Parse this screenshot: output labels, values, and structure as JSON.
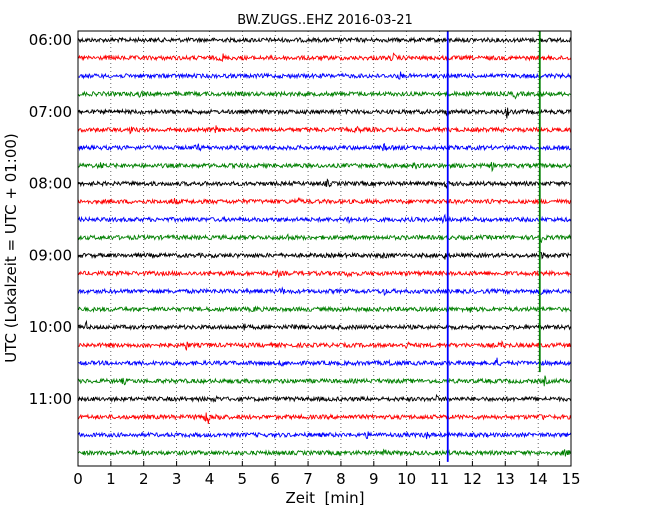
{
  "chart_data": {
    "type": "line",
    "title": "BW.ZUGS..EHZ 2016-03-21",
    "xlabel": "Zeit  [min]",
    "ylabel": "UTC (Lokalzeit = UTC + 01:00)",
    "xlim": [
      0,
      15
    ],
    "x_ticks": [
      "0",
      "1",
      "2",
      "3",
      "4",
      "5",
      "6",
      "7",
      "8",
      "9",
      "10",
      "11",
      "12",
      "13",
      "14",
      "15"
    ],
    "y_ticks": [
      "06:00",
      "07:00",
      "08:00",
      "09:00",
      "10:00",
      "11:00"
    ],
    "grid": true,
    "trace_colors": [
      "#000000",
      "#ff0000",
      "#0000ff",
      "#008000"
    ],
    "traces": [
      {
        "start": "06:00",
        "events": [
          {
            "t": 11.2,
            "a": 1.3
          }
        ]
      },
      {
        "start": "06:15",
        "events": [
          {
            "t": 4.4,
            "a": 1.8
          },
          {
            "t": 9.6,
            "a": 1.6
          }
        ]
      },
      {
        "start": "06:30",
        "events": [
          {
            "t": 9.8,
            "a": 1.5
          }
        ]
      },
      {
        "start": "06:45",
        "events": [
          {
            "t": 1.9,
            "a": 1.5
          },
          {
            "t": 13.3,
            "a": 1.6
          }
        ]
      },
      {
        "start": "07:00",
        "events": [
          {
            "t": 13.05,
            "a": 2.2
          },
          {
            "t": 11.2,
            "a": 1.2
          }
        ]
      },
      {
        "start": "07:15",
        "events": [
          {
            "t": 1.6,
            "a": 1.3
          },
          {
            "t": 4.2,
            "a": 1.2
          },
          {
            "t": 8.5,
            "a": 1.2
          }
        ]
      },
      {
        "start": "07:30",
        "events": [
          {
            "t": 3.65,
            "a": 1.8
          },
          {
            "t": 9.3,
            "a": 1.4
          }
        ]
      },
      {
        "start": "07:45",
        "events": [
          {
            "t": 0.7,
            "a": 1.5
          },
          {
            "t": 10.25,
            "a": 1.6
          },
          {
            "t": 12.6,
            "a": 1.4
          }
        ]
      },
      {
        "start": "08:00",
        "events": [
          {
            "t": 7.6,
            "a": 1.5
          },
          {
            "t": 11.2,
            "a": 1.3
          }
        ]
      },
      {
        "start": "08:15",
        "events": [
          {
            "t": 2.9,
            "a": 1.8
          },
          {
            "t": 6.7,
            "a": 1.5
          },
          {
            "t": 12.5,
            "a": 1.5
          }
        ]
      },
      {
        "start": "08:30",
        "events": [
          {
            "t": 8.25,
            "a": 2.0
          },
          {
            "t": 11.15,
            "a": 2.2
          }
        ]
      },
      {
        "start": "08:45",
        "events": [
          {
            "t": 6.35,
            "a": 1.6
          },
          {
            "t": 14.1,
            "a": 2.4
          }
        ]
      },
      {
        "start": "09:00",
        "events": [
          {
            "t": 11.15,
            "a": 1.6
          },
          {
            "t": 14.1,
            "a": 2.0
          },
          {
            "t": 9.3,
            "a": 1.4
          }
        ]
      },
      {
        "start": "09:15",
        "events": [
          {
            "t": 8.25,
            "a": 1.7
          },
          {
            "t": 6.1,
            "a": 1.2
          }
        ]
      },
      {
        "start": "09:30",
        "events": [
          {
            "t": 6.2,
            "a": 1.6
          },
          {
            "t": 9.3,
            "a": 1.7
          },
          {
            "t": 14.1,
            "a": 1.5
          }
        ]
      },
      {
        "start": "09:45",
        "events": [
          {
            "t": 11.9,
            "a": 1.8
          },
          {
            "t": 5.4,
            "a": 1.3
          }
        ]
      },
      {
        "start": "10:00",
        "events": [
          {
            "t": 0.25,
            "a": 2.0
          },
          {
            "t": 6.6,
            "a": 1.6
          },
          {
            "t": 5.05,
            "a": 1.4
          }
        ]
      },
      {
        "start": "10:15",
        "events": [
          {
            "t": 3.3,
            "a": 1.8
          },
          {
            "t": 2.1,
            "a": 1.2
          },
          {
            "t": 10.0,
            "a": 1.4
          },
          {
            "t": 12.9,
            "a": 1.3
          }
        ]
      },
      {
        "start": "10:30",
        "events": [
          {
            "t": 9.5,
            "a": 1.8
          },
          {
            "t": 12.75,
            "a": 1.6
          },
          {
            "t": 6.2,
            "a": 1.3
          }
        ]
      },
      {
        "start": "10:45",
        "events": [
          {
            "t": 14.2,
            "a": 1.9
          },
          {
            "t": 1.4,
            "a": 1.2
          }
        ]
      },
      {
        "start": "11:00",
        "events": [
          {
            "t": 4.2,
            "a": 1.4
          },
          {
            "t": 10.9,
            "a": 1.2
          }
        ]
      },
      {
        "start": "11:15",
        "events": [
          {
            "t": 3.95,
            "a": 5.5
          },
          {
            "t": 4.3,
            "a": 2.2
          },
          {
            "t": 3.65,
            "a": 1.6
          },
          {
            "t": 14.1,
            "a": 1.9
          }
        ]
      },
      {
        "start": "11:30",
        "events": [
          {
            "t": 10.6,
            "a": 1.6
          },
          {
            "t": 8.8,
            "a": 1.2
          }
        ]
      },
      {
        "start": "11:45",
        "events": [
          {
            "t": 9.35,
            "a": 1.6
          },
          {
            "t": 14.85,
            "a": 1.8
          },
          {
            "t": 2.0,
            "a": 1.2
          }
        ]
      }
    ],
    "vertical_lines": [
      {
        "x": 11.25,
        "color": "#0000ff",
        "from": "06:00",
        "to": "11:45"
      },
      {
        "x": 14.05,
        "color": "#008000",
        "from": "06:00",
        "to": "10:30"
      }
    ]
  }
}
